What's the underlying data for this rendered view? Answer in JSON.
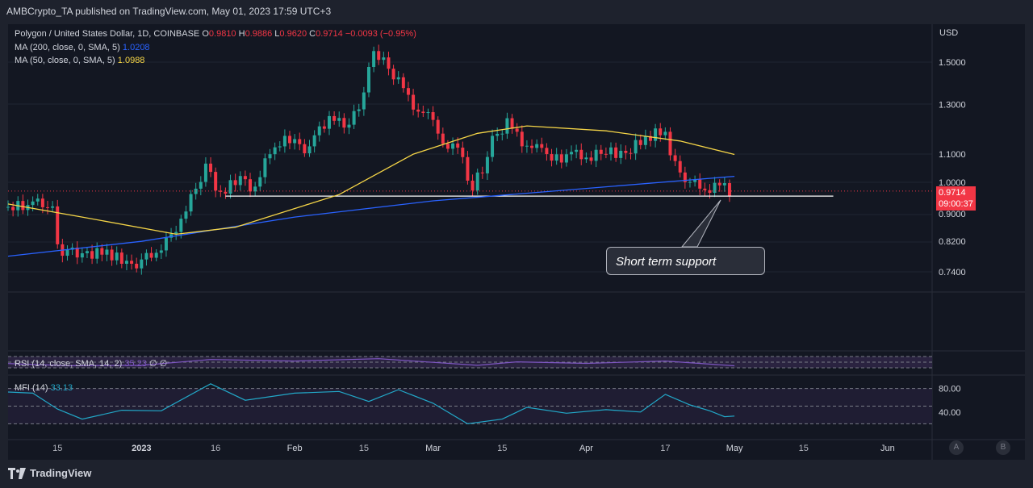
{
  "header": {
    "published": "AMBCrypto_TA published on TradingView.com, May 01, 2023 17:59 UTC+3"
  },
  "legend": {
    "symbol": "Polygon / United States Dollar, 1D, COINBASE",
    "o_label": "O",
    "o": "0.9810",
    "h_label": "H",
    "h": "0.9886",
    "l_label": "L",
    "l": "0.9620",
    "c_label": "C",
    "c": "0.9714",
    "change": "−0.0093 (−0.95%)",
    "ma200_label": "MA (200, close, 0, SMA, 5)",
    "ma200_value": "1.0208",
    "ma50_label": "MA (50, close, 0, SMA, 5)",
    "ma50_value": "1.0988",
    "rsi_label": "RSI (14, close, SMA, 14, 2)",
    "rsi_value": "35.23",
    "rsi_extra": "∅ ∅",
    "mfi_label": "MFI (14)",
    "mfi_value": "33.13"
  },
  "price_axis": {
    "currency": "USD",
    "ticks": [
      "1.5000",
      "1.3000",
      "1.1000",
      "1.0000",
      "0.9000",
      "0.8200",
      "0.7400"
    ],
    "last_price": "0.9714",
    "countdown": "09:00:37"
  },
  "mfi_axis": {
    "ticks": [
      "80.00",
      "40.00"
    ]
  },
  "time_axis": {
    "ticks": [
      "15",
      "2023",
      "16",
      "Feb",
      "15",
      "Mar",
      "15",
      "Apr",
      "17",
      "May",
      "15",
      "Jun"
    ]
  },
  "annotation": {
    "text": "Short term support"
  },
  "footer": {
    "brand": "TradingView",
    "btn_a": "A",
    "btn_b": "B"
  },
  "colors": {
    "up": "#26a69a",
    "down": "#f23645",
    "ma200": "#2962ff",
    "ma50": "#f5d547",
    "rsi": "#7e57c2",
    "mfi": "#22a8c8",
    "support": "#ffffff"
  },
  "chart_data": {
    "type": "candlestick",
    "symbol": "Polygon / United States Dollar, 1D, COINBASE",
    "y_scale": "log",
    "ylim": [
      0.7,
      1.62
    ],
    "x_range": [
      "2022-12-05",
      "2023-06-10"
    ],
    "support_level": 0.955,
    "last_close": 0.9714,
    "price_series": [
      {
        "date": "2022-12-05",
        "close": 0.92
      },
      {
        "date": "2022-12-10",
        "close": 0.925
      },
      {
        "date": "2022-12-12",
        "close": 0.94
      },
      {
        "date": "2022-12-15",
        "close": 0.91
      },
      {
        "date": "2022-12-16",
        "close": 0.8
      },
      {
        "date": "2022-12-18",
        "close": 0.79
      },
      {
        "date": "2022-12-22",
        "close": 0.785
      },
      {
        "date": "2022-12-25",
        "close": 0.79
      },
      {
        "date": "2022-12-28",
        "close": 0.78
      },
      {
        "date": "2022-12-30",
        "close": 0.755
      },
      {
        "date": "2023-01-01",
        "close": 0.76
      },
      {
        "date": "2023-01-04",
        "close": 0.79
      },
      {
        "date": "2023-01-06",
        "close": 0.8
      },
      {
        "date": "2023-01-08",
        "close": 0.84
      },
      {
        "date": "2023-01-11",
        "close": 0.9
      },
      {
        "date": "2023-01-13",
        "close": 0.99
      },
      {
        "date": "2023-01-15",
        "close": 1.05
      },
      {
        "date": "2023-01-18",
        "close": 0.96
      },
      {
        "date": "2023-01-22",
        "close": 1.02
      },
      {
        "date": "2023-01-25",
        "close": 0.97
      },
      {
        "date": "2023-01-28",
        "close": 1.12
      },
      {
        "date": "2023-02-01",
        "close": 1.16
      },
      {
        "date": "2023-02-04",
        "close": 1.12
      },
      {
        "date": "2023-02-08",
        "close": 1.22
      },
      {
        "date": "2023-02-11",
        "close": 1.25
      },
      {
        "date": "2023-02-13",
        "close": 1.2
      },
      {
        "date": "2023-02-15",
        "close": 1.3
      },
      {
        "date": "2023-02-17",
        "close": 1.45
      },
      {
        "date": "2023-02-18",
        "close": 1.54
      },
      {
        "date": "2023-02-20",
        "close": 1.5
      },
      {
        "date": "2023-02-23",
        "close": 1.4
      },
      {
        "date": "2023-02-26",
        "close": 1.3
      },
      {
        "date": "2023-03-01",
        "close": 1.25
      },
      {
        "date": "2023-03-04",
        "close": 1.15
      },
      {
        "date": "2023-03-07",
        "close": 1.12
      },
      {
        "date": "2023-03-09",
        "close": 1.02
      },
      {
        "date": "2023-03-10",
        "close": 0.99
      },
      {
        "date": "2023-03-12",
        "close": 1.05
      },
      {
        "date": "2023-03-14",
        "close": 1.15
      },
      {
        "date": "2023-03-17",
        "close": 1.22
      },
      {
        "date": "2023-03-20",
        "close": 1.15
      },
      {
        "date": "2023-03-23",
        "close": 1.12
      },
      {
        "date": "2023-03-27",
        "close": 1.08
      },
      {
        "date": "2023-03-30",
        "close": 1.1
      },
      {
        "date": "2023-04-02",
        "close": 1.09
      },
      {
        "date": "2023-04-06",
        "close": 1.11
      },
      {
        "date": "2023-04-10",
        "close": 1.1
      },
      {
        "date": "2023-04-13",
        "close": 1.15
      },
      {
        "date": "2023-04-16",
        "close": 1.18
      },
      {
        "date": "2023-04-18",
        "close": 1.17
      },
      {
        "date": "2023-04-19",
        "close": 1.1
      },
      {
        "date": "2023-04-21",
        "close": 1.03
      },
      {
        "date": "2023-04-23",
        "close": 1.0
      },
      {
        "date": "2023-04-26",
        "close": 0.98
      },
      {
        "date": "2023-04-29",
        "close": 0.99
      },
      {
        "date": "2023-05-01",
        "close": 0.9714
      }
    ],
    "series": [
      {
        "name": "MA (200, close, 0, SMA, 5)",
        "last": 1.0208,
        "points": [
          {
            "date": "2022-12-05",
            "value": 0.78
          },
          {
            "date": "2023-01-01",
            "value": 0.82
          },
          {
            "date": "2023-02-01",
            "value": 0.89
          },
          {
            "date": "2023-03-01",
            "value": 0.94
          },
          {
            "date": "2023-04-01",
            "value": 0.98
          },
          {
            "date": "2023-05-01",
            "value": 1.0208
          }
        ]
      },
      {
        "name": "MA (50, close, 0, SMA, 5)",
        "last": 1.0988,
        "points": [
          {
            "date": "2022-12-05",
            "value": 0.93
          },
          {
            "date": "2022-12-20",
            "value": 0.89
          },
          {
            "date": "2023-01-08",
            "value": 0.84
          },
          {
            "date": "2023-01-20",
            "value": 0.86
          },
          {
            "date": "2023-02-10",
            "value": 0.96
          },
          {
            "date": "2023-02-25",
            "value": 1.1
          },
          {
            "date": "2023-03-10",
            "value": 1.18
          },
          {
            "date": "2023-03-20",
            "value": 1.21
          },
          {
            "date": "2023-04-05",
            "value": 1.19
          },
          {
            "date": "2023-04-20",
            "value": 1.15
          },
          {
            "date": "2023-05-01",
            "value": 1.0988
          }
        ]
      },
      {
        "name": "RSI (14, close, SMA, 14, 2)",
        "last": 35.23,
        "points": [
          {
            "date": "2022-12-05",
            "value": 47
          },
          {
            "date": "2022-12-17",
            "value": 36
          },
          {
            "date": "2023-01-01",
            "value": 38
          },
          {
            "date": "2023-01-15",
            "value": 68
          },
          {
            "date": "2023-02-01",
            "value": 60
          },
          {
            "date": "2023-02-18",
            "value": 72
          },
          {
            "date": "2023-03-10",
            "value": 38
          },
          {
            "date": "2023-03-18",
            "value": 56
          },
          {
            "date": "2023-04-01",
            "value": 48
          },
          {
            "date": "2023-04-17",
            "value": 60
          },
          {
            "date": "2023-05-01",
            "value": 35.23
          }
        ]
      },
      {
        "name": "MFI (14)",
        "last": 33.13,
        "points": [
          {
            "date": "2022-12-05",
            "value": 74
          },
          {
            "date": "2022-12-10",
            "value": 72
          },
          {
            "date": "2022-12-15",
            "value": 45
          },
          {
            "date": "2022-12-20",
            "value": 28
          },
          {
            "date": "2022-12-28",
            "value": 43
          },
          {
            "date": "2023-01-05",
            "value": 42
          },
          {
            "date": "2023-01-15",
            "value": 88
          },
          {
            "date": "2023-01-22",
            "value": 60
          },
          {
            "date": "2023-02-01",
            "value": 72
          },
          {
            "date": "2023-02-10",
            "value": 75
          },
          {
            "date": "2023-02-16",
            "value": 58
          },
          {
            "date": "2023-02-22",
            "value": 78
          },
          {
            "date": "2023-03-01",
            "value": 55
          },
          {
            "date": "2023-03-08",
            "value": 20
          },
          {
            "date": "2023-03-15",
            "value": 28
          },
          {
            "date": "2023-03-20",
            "value": 48
          },
          {
            "date": "2023-03-28",
            "value": 38
          },
          {
            "date": "2023-04-05",
            "value": 44
          },
          {
            "date": "2023-04-12",
            "value": 40
          },
          {
            "date": "2023-04-17",
            "value": 70
          },
          {
            "date": "2023-04-22",
            "value": 52
          },
          {
            "date": "2023-04-26",
            "value": 42
          },
          {
            "date": "2023-04-29",
            "value": 32
          },
          {
            "date": "2023-05-01",
            "value": 33.13
          }
        ]
      }
    ]
  }
}
